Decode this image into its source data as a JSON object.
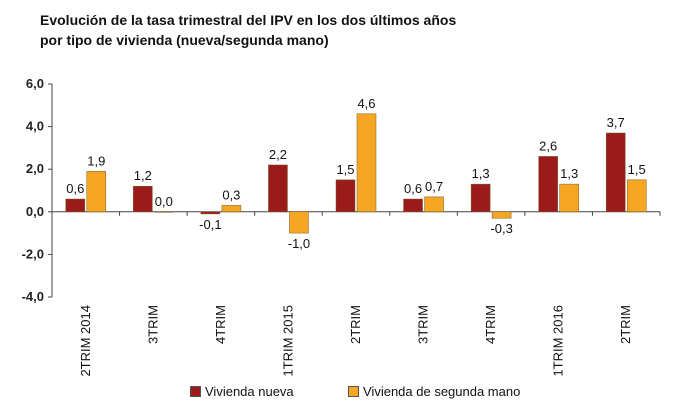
{
  "chart_data": {
    "type": "bar",
    "title_line1": "Evolución de la tasa trimestral del IPV en los dos últimos años",
    "title_line2": "por tipo de vivienda (nueva/segunda mano)",
    "categories": [
      "2TRIM 2014",
      "3TRIM",
      "4TRIM",
      "1TRIM 2015",
      "2TRIM",
      "3TRIM",
      "4TRIM",
      "1TRIM 2016",
      "2TRIM"
    ],
    "series": [
      {
        "name": "Vivienda nueva",
        "color": "#9b1b1b",
        "values": [
          0.6,
          1.2,
          -0.1,
          2.2,
          1.5,
          0.6,
          1.3,
          2.6,
          3.7
        ],
        "labels": [
          "0,6",
          "1,2",
          "-0,1",
          "2,2",
          "1,5",
          "0,6",
          "1,3",
          "2,6",
          "3,7"
        ]
      },
      {
        "name": "Vivienda de segunda mano",
        "color": "#f5a623",
        "values": [
          1.9,
          0.0,
          0.3,
          -1.0,
          4.6,
          0.7,
          -0.3,
          1.3,
          1.5
        ],
        "labels": [
          "1,9",
          "0,0",
          "0,3",
          "-1,0",
          "4,6",
          "0,7",
          "-0,3",
          "1,3",
          "1,5"
        ]
      }
    ],
    "yticks": [
      "6,0",
      "4,0",
      "2,0",
      "0,0",
      "-2,0",
      "-4,0"
    ],
    "ytick_values": [
      6,
      4,
      2,
      0,
      -2,
      -4
    ],
    "ylim": [
      -4,
      6
    ],
    "grid": false,
    "legend_position": "bottom"
  }
}
